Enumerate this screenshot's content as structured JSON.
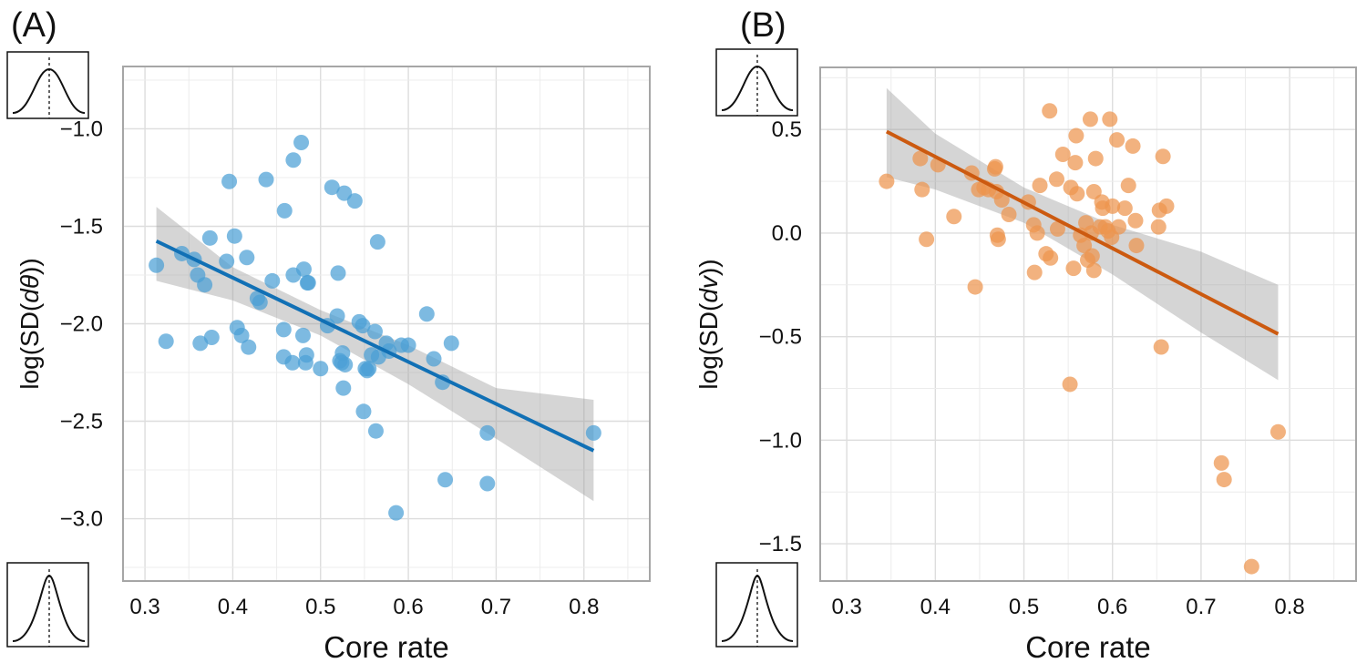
{
  "chart_data": [
    {
      "type": "scatter",
      "panel_label": "(A)",
      "xlabel": "Core rate",
      "ylabel": "log(SD(dθ))",
      "ylabel_parts": [
        "log(SD(",
        "dθ",
        "))"
      ],
      "xlim": [
        0.275,
        0.875
      ],
      "ylim": [
        -3.32,
        -0.68
      ],
      "xticks": [
        0.3,
        0.4,
        0.5,
        0.6,
        0.7,
        0.8
      ],
      "xtick_labels": [
        "0.3",
        "0.4",
        "0.5",
        "0.6",
        "0.7",
        "0.8"
      ],
      "yticks": [
        -3.0,
        -2.5,
        -2.0,
        -1.5,
        -1.0
      ],
      "ytick_labels": [
        "−3.0",
        "−2.5",
        "−2.0",
        "−1.5",
        "−1.0"
      ],
      "grid": true,
      "point_color": "#4b9fd5",
      "line_color": "#1170b5",
      "band_color": "#9a9a9a",
      "points": [
        [
          0.313,
          -1.7
        ],
        [
          0.324,
          -2.09
        ],
        [
          0.342,
          -1.64
        ],
        [
          0.356,
          -1.67
        ],
        [
          0.36,
          -1.75
        ],
        [
          0.363,
          -2.1
        ],
        [
          0.368,
          -1.8
        ],
        [
          0.374,
          -1.56
        ],
        [
          0.376,
          -2.07
        ],
        [
          0.393,
          -1.68
        ],
        [
          0.396,
          -1.27
        ],
        [
          0.402,
          -1.55
        ],
        [
          0.405,
          -2.02
        ],
        [
          0.41,
          -2.06
        ],
        [
          0.416,
          -1.66
        ],
        [
          0.418,
          -2.12
        ],
        [
          0.428,
          -1.87
        ],
        [
          0.431,
          -1.89
        ],
        [
          0.438,
          -1.26
        ],
        [
          0.445,
          -1.78
        ],
        [
          0.458,
          -2.17
        ],
        [
          0.458,
          -2.03
        ],
        [
          0.459,
          -1.42
        ],
        [
          0.468,
          -2.2
        ],
        [
          0.469,
          -1.75
        ],
        [
          0.469,
          -1.16
        ],
        [
          0.478,
          -1.07
        ],
        [
          0.48,
          -2.06
        ],
        [
          0.481,
          -1.72
        ],
        [
          0.483,
          -2.2
        ],
        [
          0.484,
          -2.16
        ],
        [
          0.485,
          -1.79
        ],
        [
          0.486,
          -1.79
        ],
        [
          0.5,
          -2.23
        ],
        [
          0.508,
          -2.01
        ],
        [
          0.513,
          -1.3
        ],
        [
          0.519,
          -1.96
        ],
        [
          0.52,
          -1.74
        ],
        [
          0.522,
          -2.19
        ],
        [
          0.524,
          -2.2
        ],
        [
          0.525,
          -2.15
        ],
        [
          0.526,
          -2.33
        ],
        [
          0.527,
          -1.33
        ],
        [
          0.528,
          -2.21
        ],
        [
          0.539,
          -1.37
        ],
        [
          0.544,
          -1.99
        ],
        [
          0.548,
          -2.01
        ],
        [
          0.549,
          -2.45
        ],
        [
          0.551,
          -2.23
        ],
        [
          0.553,
          -2.24
        ],
        [
          0.555,
          -2.23
        ],
        [
          0.558,
          -2.16
        ],
        [
          0.562,
          -2.04
        ],
        [
          0.563,
          -2.55
        ],
        [
          0.565,
          -1.58
        ],
        [
          0.566,
          -2.17
        ],
        [
          0.575,
          -2.1
        ],
        [
          0.578,
          -2.14
        ],
        [
          0.586,
          -2.97
        ],
        [
          0.592,
          -2.11
        ],
        [
          0.6,
          -2.11
        ],
        [
          0.621,
          -1.95
        ],
        [
          0.629,
          -2.18
        ],
        [
          0.639,
          -2.3
        ],
        [
          0.642,
          -2.8
        ],
        [
          0.649,
          -2.1
        ],
        [
          0.69,
          -2.56
        ],
        [
          0.69,
          -2.82
        ],
        [
          0.811,
          -2.56
        ]
      ],
      "fit": {
        "x": [
          0.313,
          0.811
        ],
        "y": [
          -1.576,
          -2.651
        ]
      },
      "band": {
        "x": [
          0.313,
          0.4,
          0.5,
          0.6,
          0.7,
          0.811
        ],
        "upper": [
          -1.4,
          -1.71,
          -1.93,
          -2.11,
          -2.33,
          -2.39
        ],
        "lower": [
          -1.78,
          -1.88,
          -2.06,
          -2.31,
          -2.59,
          -2.91
        ]
      }
    },
    {
      "type": "scatter",
      "panel_label": "(B)",
      "xlabel": "Core rate",
      "ylabel": "log(SD(dv))",
      "ylabel_parts": [
        "log(SD(",
        "dv",
        "))"
      ],
      "xlim": [
        0.27,
        0.875
      ],
      "ylim": [
        -1.68,
        0.8
      ],
      "xticks": [
        0.3,
        0.4,
        0.5,
        0.6,
        0.7,
        0.8
      ],
      "xtick_labels": [
        "0.3",
        "0.4",
        "0.5",
        "0.6",
        "0.7",
        "0.8"
      ],
      "yticks": [
        -1.5,
        -1.0,
        -0.5,
        0.0,
        0.5
      ],
      "ytick_labels": [
        "−1.5",
        "−1.0",
        "−0.5",
        "0.0",
        "0.5"
      ],
      "grid": true,
      "point_color": "#ed944e",
      "line_color": "#cc5a10",
      "band_color": "#9a9a9a",
      "points": [
        [
          0.345,
          0.25
        ],
        [
          0.383,
          0.36
        ],
        [
          0.385,
          0.21
        ],
        [
          0.39,
          -0.03
        ],
        [
          0.403,
          0.33
        ],
        [
          0.421,
          0.08
        ],
        [
          0.441,
          0.29
        ],
        [
          0.445,
          -0.26
        ],
        [
          0.449,
          0.21
        ],
        [
          0.455,
          0.22
        ],
        [
          0.46,
          0.21
        ],
        [
          0.467,
          0.31
        ],
        [
          0.468,
          0.32
        ],
        [
          0.469,
          0.2
        ],
        [
          0.47,
          -0.01
        ],
        [
          0.471,
          -0.03
        ],
        [
          0.475,
          0.16
        ],
        [
          0.483,
          0.09
        ],
        [
          0.505,
          0.15
        ],
        [
          0.511,
          0.04
        ],
        [
          0.512,
          -0.19
        ],
        [
          0.515,
          0.0
        ],
        [
          0.518,
          0.23
        ],
        [
          0.525,
          -0.1
        ],
        [
          0.529,
          0.59
        ],
        [
          0.53,
          -0.12
        ],
        [
          0.537,
          0.26
        ],
        [
          0.538,
          0.02
        ],
        [
          0.544,
          0.38
        ],
        [
          0.552,
          -0.73
        ],
        [
          0.553,
          0.22
        ],
        [
          0.556,
          -0.17
        ],
        [
          0.558,
          0.34
        ],
        [
          0.559,
          0.47
        ],
        [
          0.56,
          0.19
        ],
        [
          0.564,
          -0.01
        ],
        [
          0.568,
          -0.06
        ],
        [
          0.57,
          0.05
        ],
        [
          0.572,
          -0.13
        ],
        [
          0.575,
          0.55
        ],
        [
          0.576,
          0.0
        ],
        [
          0.577,
          -0.11
        ],
        [
          0.579,
          0.2
        ],
        [
          0.579,
          -0.18
        ],
        [
          0.581,
          0.36
        ],
        [
          0.586,
          0.03
        ],
        [
          0.588,
          0.15
        ],
        [
          0.589,
          0.12
        ],
        [
          0.592,
          0.03
        ],
        [
          0.595,
          0.01
        ],
        [
          0.597,
          0.55
        ],
        [
          0.599,
          -0.02
        ],
        [
          0.6,
          0.13
        ],
        [
          0.605,
          0.45
        ],
        [
          0.607,
          0.03
        ],
        [
          0.614,
          0.12
        ],
        [
          0.618,
          0.23
        ],
        [
          0.623,
          0.42
        ],
        [
          0.626,
          0.06
        ],
        [
          0.627,
          -0.06
        ],
        [
          0.652,
          0.03
        ],
        [
          0.653,
          0.11
        ],
        [
          0.655,
          -0.55
        ],
        [
          0.657,
          0.37
        ],
        [
          0.661,
          0.13
        ],
        [
          0.723,
          -1.11
        ],
        [
          0.726,
          -1.19
        ],
        [
          0.757,
          -1.61
        ],
        [
          0.787,
          -0.96
        ]
      ],
      "fit": {
        "x": [
          0.345,
          0.787
        ],
        "y": [
          0.49,
          -0.487
        ]
      },
      "band": {
        "x": [
          0.345,
          0.4,
          0.5,
          0.6,
          0.7,
          0.787
        ],
        "upper": [
          0.7,
          0.48,
          0.22,
          0.04,
          -0.09,
          -0.25
        ],
        "lower": [
          0.27,
          0.21,
          0.05,
          -0.2,
          -0.48,
          -0.71
        ]
      }
    }
  ]
}
